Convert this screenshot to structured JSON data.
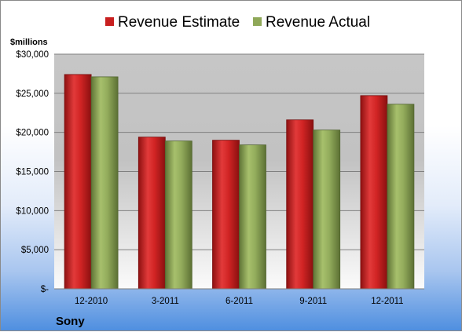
{
  "company": "Sony",
  "chart_data": {
    "type": "bar",
    "title": "",
    "ylabel": "$millions",
    "xlabel": "",
    "categories": [
      "12-2010",
      "3-2011",
      "6-2011",
      "9-2011",
      "12-2011"
    ],
    "series": [
      {
        "name": "Revenue Estimate",
        "values": [
          27400,
          19400,
          19000,
          21600,
          24700
        ],
        "color": "#c81f1f"
      },
      {
        "name": "Revenue Actual",
        "values": [
          27100,
          18900,
          18400,
          20300,
          23600
        ],
        "color": "#8fa858"
      }
    ],
    "ylim": [
      0,
      30000
    ],
    "yticks": [
      {
        "value": 0,
        "label": "$-"
      },
      {
        "value": 5000,
        "label": "$5,000"
      },
      {
        "value": 10000,
        "label": "$10,000"
      },
      {
        "value": 15000,
        "label": "$15,000"
      },
      {
        "value": 20000,
        "label": "$20,000"
      },
      {
        "value": 25000,
        "label": "$25,000"
      },
      {
        "value": 30000,
        "label": "$30,000"
      }
    ],
    "grid": true,
    "legend_position": "top"
  }
}
